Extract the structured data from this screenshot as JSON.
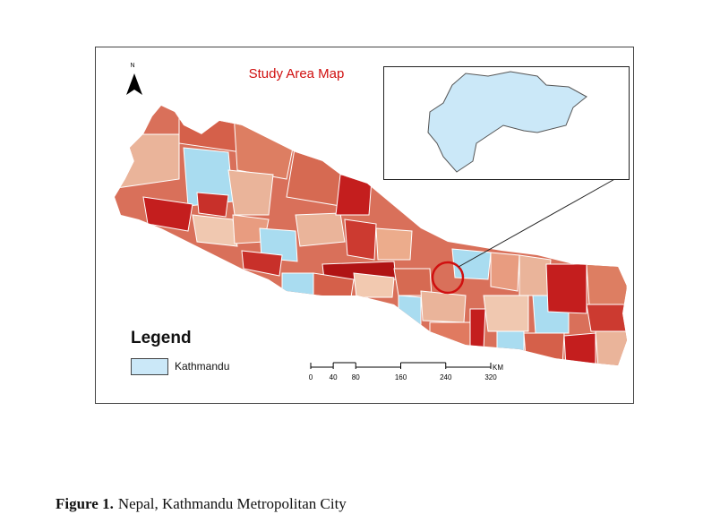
{
  "map": {
    "title": "Study Area Map",
    "north": "N",
    "legend": {
      "title": "Legend",
      "items": [
        "Kathmandu"
      ]
    },
    "scale_bar": {
      "ticks": [
        0,
        40,
        80,
        160,
        240,
        320
      ],
      "unit": "KM"
    }
  },
  "caption": {
    "label": "Figure 1.",
    "text": "Nepal, Kathmandu Metropolitan City"
  }
}
